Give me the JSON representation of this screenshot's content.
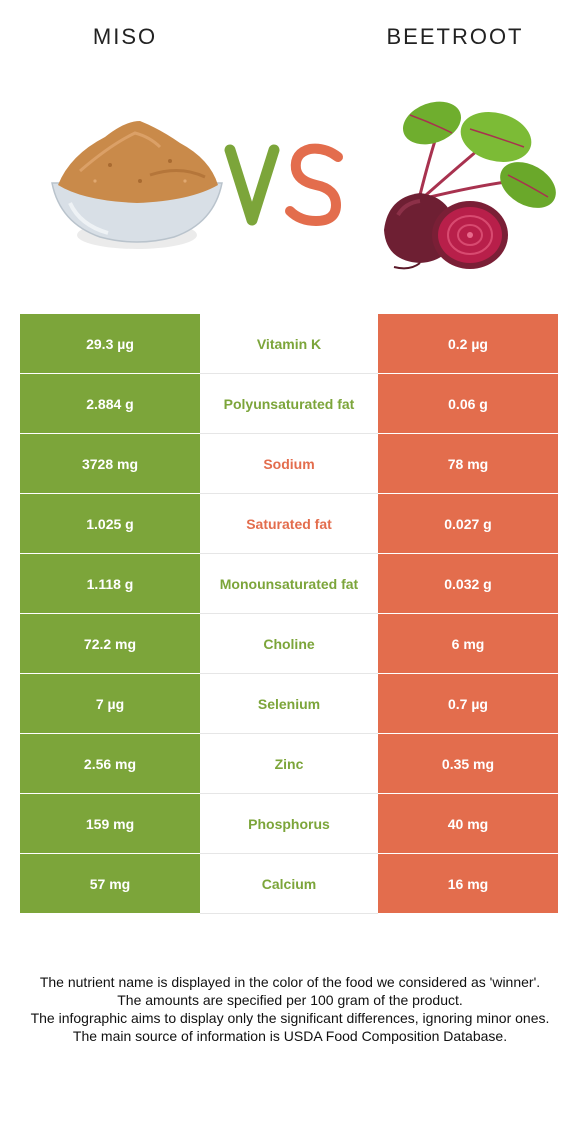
{
  "header": {
    "left_title": "MISO",
    "right_title": "BEETROOT",
    "vs_text": "VS"
  },
  "colors": {
    "left_food": "#7ca53a",
    "right_food": "#e36d4d"
  },
  "images": {
    "left": "miso-bowl",
    "right": "beetroot"
  },
  "rows": [
    {
      "nutrient": "Vitamin K",
      "left": "29.3 µg",
      "right": "0.2 µg",
      "winner": "left"
    },
    {
      "nutrient": "Polyunsaturated fat",
      "left": "2.884 g",
      "right": "0.06 g",
      "winner": "left"
    },
    {
      "nutrient": "Sodium",
      "left": "3728 mg",
      "right": "78 mg",
      "winner": "right"
    },
    {
      "nutrient": "Saturated fat",
      "left": "1.025 g",
      "right": "0.027 g",
      "winner": "right"
    },
    {
      "nutrient": "Monounsaturated fat",
      "left": "1.118 g",
      "right": "0.032 g",
      "winner": "left"
    },
    {
      "nutrient": "Choline",
      "left": "72.2 mg",
      "right": "6 mg",
      "winner": "left"
    },
    {
      "nutrient": "Selenium",
      "left": "7 µg",
      "right": "0.7 µg",
      "winner": "left"
    },
    {
      "nutrient": "Zinc",
      "left": "2.56 mg",
      "right": "0.35 mg",
      "winner": "left"
    },
    {
      "nutrient": "Phosphorus",
      "left": "159 mg",
      "right": "40 mg",
      "winner": "left"
    },
    {
      "nutrient": "Calcium",
      "left": "57 mg",
      "right": "16 mg",
      "winner": "left"
    }
  ],
  "footer": [
    "The nutrient name is displayed in the color of the food we considered as 'winner'.",
    "The amounts are specified per 100 gram of the product.",
    "The infographic aims to display only the significant differences, ignoring minor ones.",
    "The main source of information is USDA Food Composition Database."
  ]
}
